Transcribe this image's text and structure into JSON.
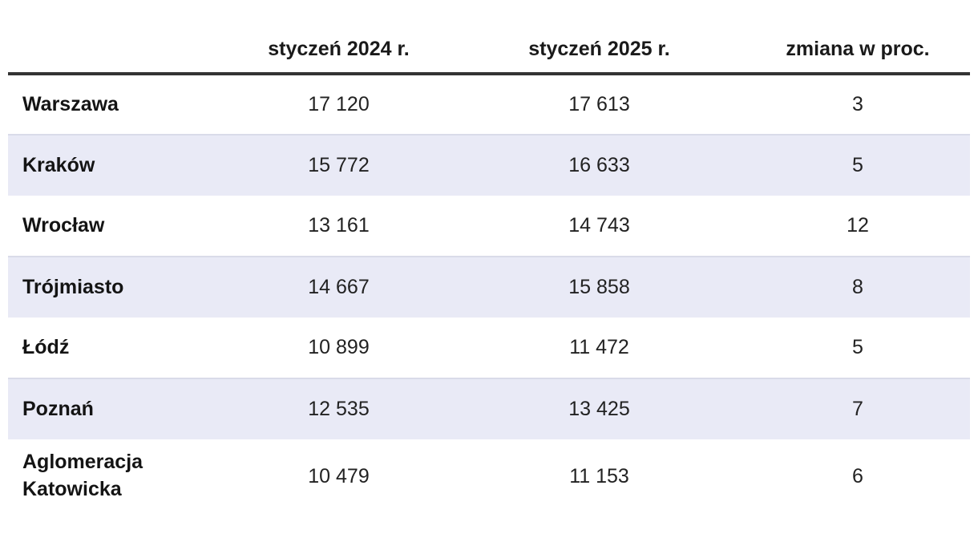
{
  "table": {
    "columns": [
      "",
      "styczeń 2024 r.",
      "styczeń 2025 r.",
      "zmiana w proc."
    ],
    "rows": [
      {
        "name": "Warszawa",
        "jan2024": "17 120",
        "jan2025": "17 613",
        "change": "3"
      },
      {
        "name": "Kraków",
        "jan2024": "15 772",
        "jan2025": "16 633",
        "change": "5"
      },
      {
        "name": "Wrocław",
        "jan2024": "13 161",
        "jan2025": "14 743",
        "change": "12"
      },
      {
        "name": "Trójmiasto",
        "jan2024": "14 667",
        "jan2025": "15 858",
        "change": "8"
      },
      {
        "name": "Łódź",
        "jan2024": "10 899",
        "jan2025": "11 472",
        "change": "5"
      },
      {
        "name": "Poznań",
        "jan2024": "12 535",
        "jan2025": "13 425",
        "change": "7"
      },
      {
        "name": "Aglomeracja Katowicka",
        "jan2024": "10 479",
        "jan2025": "11 153",
        "change": "6"
      }
    ]
  },
  "colors": {
    "stripe_background": "#e9eaf6",
    "stripe_top_border": "#d9dbe9",
    "header_rule": "#333333",
    "text": "#191919"
  },
  "chart_data": {
    "type": "table",
    "title": "",
    "columns": [
      "",
      "styczeń 2024 r.",
      "styczeń 2025 r.",
      "zmiana w proc."
    ],
    "rows": [
      [
        "Warszawa",
        17120,
        17613,
        3
      ],
      [
        "Kraków",
        15772,
        16633,
        5
      ],
      [
        "Wrocław",
        13161,
        14743,
        12
      ],
      [
        "Trójmiasto",
        14667,
        15858,
        8
      ],
      [
        "Łódź",
        10899,
        11472,
        5
      ],
      [
        "Poznań",
        12535,
        13425,
        7
      ],
      [
        "Aglomeracja Katowicka",
        10479,
        11153,
        6
      ]
    ],
    "layout_hints": {
      "striped_rows": [
        1,
        3,
        5
      ],
      "value_alignment": "center",
      "label_alignment": "left"
    }
  }
}
